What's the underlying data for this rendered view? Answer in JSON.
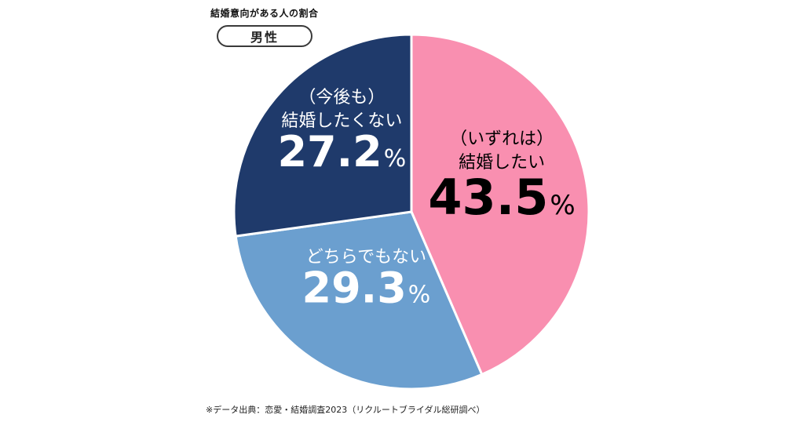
{
  "title": "結婚意向がある人の割合",
  "gender_label": "男性",
  "source": "※データ出典：恋愛・結婚調査2023（リクルートブライダル総研調べ）",
  "colors": {
    "pink": "#f98fb0",
    "light_blue": "#6b9fcf",
    "navy": "#1f3a6b",
    "border": "#ffffff"
  },
  "chart_data": {
    "type": "pie",
    "title": "結婚意向がある人の割合",
    "unit": "%",
    "start": "12 o'clock",
    "direction": "clockwise",
    "slices": [
      {
        "label_line1": "（いずれは）",
        "label_line2": "結婚したい",
        "value": 43.5,
        "value_label": "43.5",
        "color": "#f98fb0",
        "text_color": "#000000"
      },
      {
        "label_line1": "どちらでもない",
        "label_line2": "",
        "value": 29.3,
        "value_label": "29.3",
        "color": "#6b9fcf",
        "text_color": "#ffffff"
      },
      {
        "label_line1": "（今後も）",
        "label_line2": "結婚したくない",
        "value": 27.2,
        "value_label": "27.2",
        "color": "#1f3a6b",
        "text_color": "#ffffff"
      }
    ]
  }
}
